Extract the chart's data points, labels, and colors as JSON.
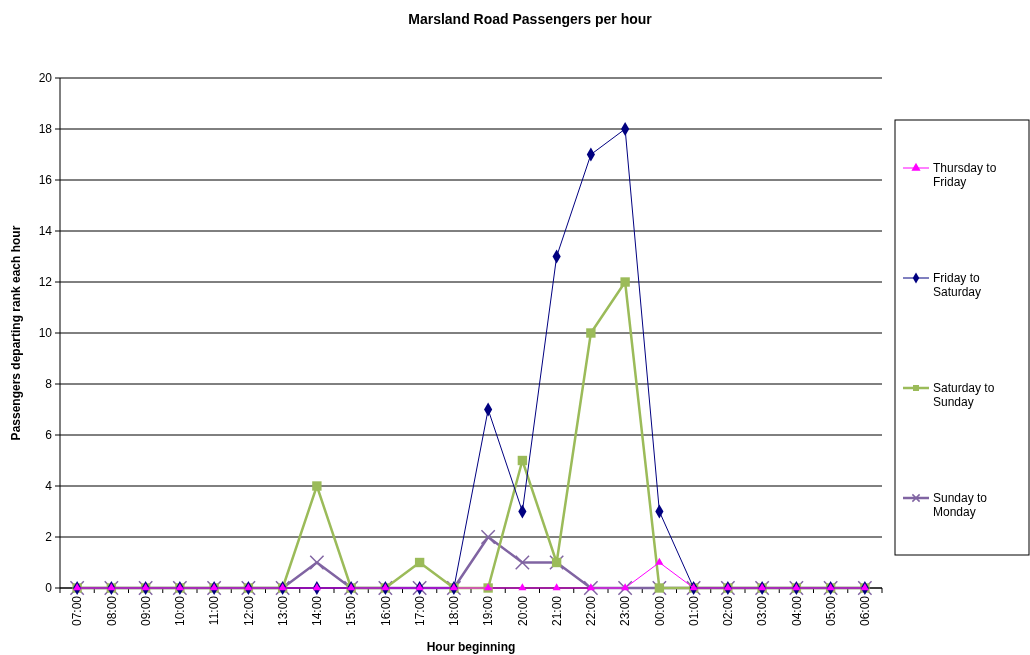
{
  "chart_data": {
    "type": "line",
    "title": "Marsland Road Passengers per hour",
    "xlabel": "Hour beginning",
    "ylabel": "Passengers departing rank each hour",
    "categories": [
      "07:00",
      "08:00",
      "09:00",
      "10:00",
      "11:00",
      "12:00",
      "13:00",
      "14:00",
      "15:00",
      "16:00",
      "17:00",
      "18:00",
      "19:00",
      "20:00",
      "21:00",
      "22:00",
      "23:00",
      "00:00",
      "01:00",
      "02:00",
      "03:00",
      "04:00",
      "05:00",
      "06:00"
    ],
    "series": [
      {
        "name": "Thursday to Friday",
        "color": "#ff00ff",
        "marker": "triangle",
        "values": [
          0,
          0,
          0,
          0,
          0,
          0,
          0,
          0,
          0,
          0,
          0,
          0,
          0,
          0,
          0,
          0,
          0,
          1,
          0,
          0,
          0,
          0,
          0,
          0
        ]
      },
      {
        "name": "Friday to Saturday",
        "color": "#000080",
        "marker": "diamond",
        "values": [
          0,
          0,
          0,
          0,
          0,
          0,
          0,
          0,
          0,
          0,
          0,
          0,
          7,
          3,
          13,
          17,
          18,
          3,
          0,
          0,
          0,
          0,
          0,
          0
        ]
      },
      {
        "name": "Saturday to Sunday",
        "color": "#9bbb59",
        "marker": "square",
        "values": [
          0,
          0,
          0,
          0,
          0,
          0,
          0,
          4,
          0,
          0,
          1,
          0,
          0,
          5,
          1,
          10,
          12,
          0,
          0,
          0,
          0,
          0,
          0,
          0
        ]
      },
      {
        "name": "Sunday to Monday",
        "color": "#8064a2",
        "marker": "cross",
        "values": [
          0,
          0,
          0,
          0,
          0,
          0,
          0,
          1,
          0,
          0,
          0,
          0,
          2,
          1,
          1,
          0,
          0,
          0,
          0,
          0,
          0,
          0,
          0,
          0
        ]
      }
    ],
    "ylim": [
      0,
      20
    ],
    "yticks": [
      0,
      2,
      4,
      6,
      8,
      10,
      12,
      14,
      16,
      18,
      20
    ],
    "grid": "y",
    "legend": "right"
  }
}
